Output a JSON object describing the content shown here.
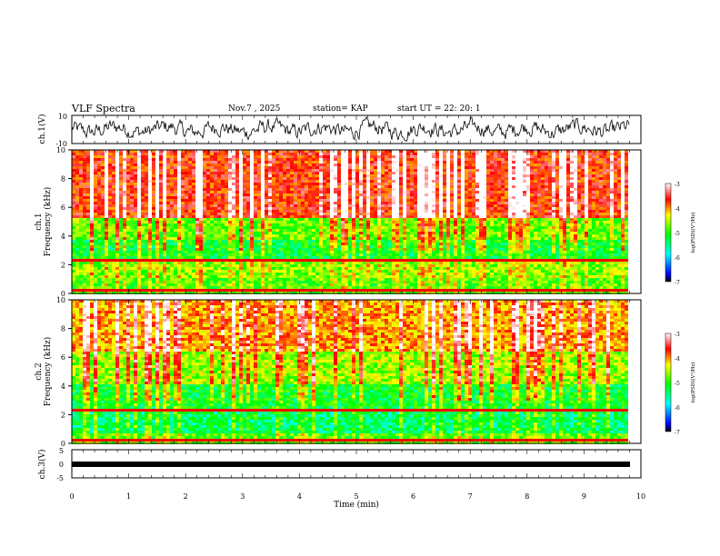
{
  "header": {
    "title": "VLF Spectra",
    "date": "Nov.7 , 2025",
    "station": "station= KAP",
    "start_ut": "start UT =  22: 20: 1"
  },
  "chart_data": [
    {
      "type": "line",
      "panel": "ch1-waveform",
      "ylabel": "ch.1(V)",
      "ylim": [
        -10,
        10
      ],
      "yticks": [
        "10",
        "-10"
      ],
      "xlim": [
        0,
        10
      ],
      "description_of_series": "noisy waveform oscillating roughly between -8 and 8 V across 0-9.8 min"
    },
    {
      "type": "heatmap",
      "panel": "ch1-spectrogram",
      "ylabel": "ch.1\nFrequency (kHz)",
      "ylim": [
        0,
        10
      ],
      "yticks": [
        "0",
        "2",
        "4",
        "6",
        "8",
        "10"
      ],
      "xlim": [
        0,
        10
      ],
      "colorbar": {
        "label": "log(PSD)(V²/Hz)",
        "ticks": [
          "-3",
          "-4",
          "-5",
          "-6",
          "-7"
        ],
        "range": [
          -7,
          -3
        ]
      }
    },
    {
      "type": "heatmap",
      "panel": "ch2-spectrogram",
      "ylabel": "ch.2\nFrequency (kHz)",
      "ylim": [
        0,
        10
      ],
      "yticks": [
        "0",
        "2",
        "4",
        "6",
        "8",
        "10"
      ],
      "xlim": [
        0,
        10
      ],
      "colorbar": {
        "label": "log(PSD)(V²/Hz)",
        "ticks": [
          "-3",
          "-4",
          "-5",
          "-6",
          "-7"
        ],
        "range": [
          -7,
          -3
        ]
      }
    },
    {
      "type": "line",
      "panel": "ch3-trace",
      "ylabel": "ch.3(V)",
      "ylim": [
        -5,
        5
      ],
      "yticks": [
        "5",
        "0",
        "-5"
      ],
      "xlim": [
        0,
        10
      ],
      "value": -0.8
    }
  ],
  "xaxis": {
    "label": "Time (min)",
    "ticks": [
      "0",
      "1",
      "2",
      "3",
      "4",
      "5",
      "6",
      "7",
      "8",
      "9",
      "10"
    ]
  }
}
